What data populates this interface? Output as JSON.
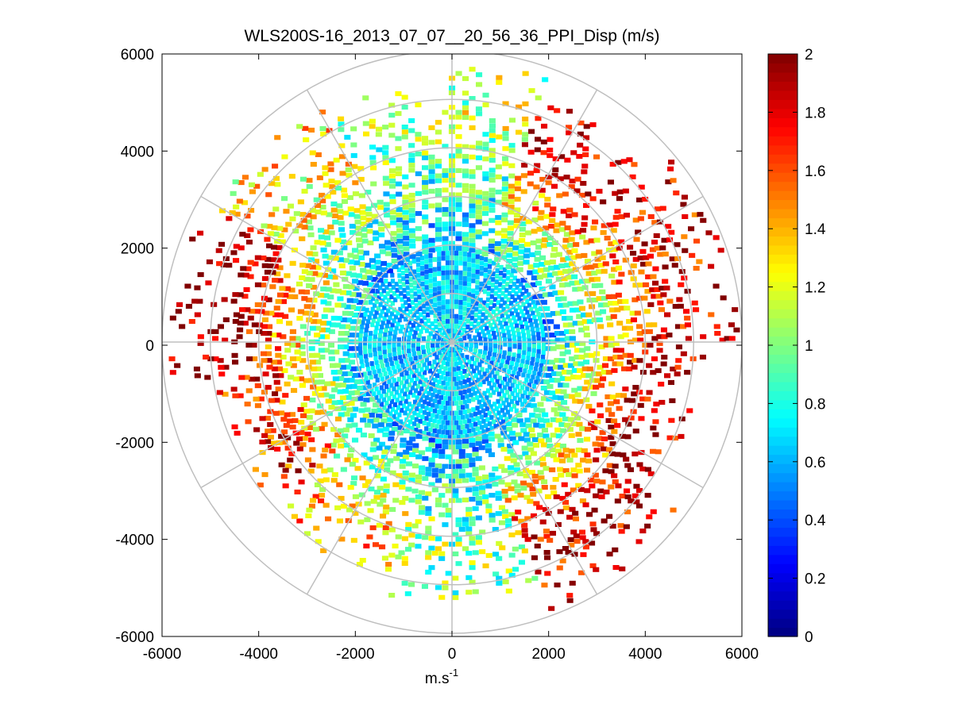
{
  "chart_data": {
    "type": "heatmap",
    "subtype": "polar-ppi",
    "title": "WLS200S-16_2013_07_07__20_56_36_PPI_Disp (m/s)",
    "xlabel": "m.s",
    "xlabel_superscript": "-1",
    "ylabel": "",
    "xlim": [
      -6000,
      6000
    ],
    "ylim": [
      -6000,
      6000
    ],
    "xticks": [
      -6000,
      -4000,
      -2000,
      0,
      2000,
      4000,
      6000
    ],
    "yticks": [
      -6000,
      -4000,
      -2000,
      0,
      2000,
      4000,
      6000
    ],
    "xtick_labels": [
      "-6000",
      "-4000",
      "-2000",
      "0",
      "2000",
      "4000",
      "6000"
    ],
    "ytick_labels": [
      "-6000",
      "-4000",
      "-2000",
      "0",
      "2000",
      "4000",
      "6000"
    ],
    "polar_grid_radii": [
      1000,
      2000,
      3000,
      4000,
      5000,
      6000
    ],
    "polar_grid_spokes_deg": [
      0,
      30,
      60,
      90,
      120,
      150,
      180,
      210,
      240,
      270,
      300,
      330
    ],
    "grid": true,
    "colorbar": {
      "colormap": "jet",
      "clim": [
        0,
        2
      ],
      "ticks": [
        0,
        0.2,
        0.4,
        0.6,
        0.8,
        1,
        1.2,
        1.4,
        1.6,
        1.8,
        2
      ],
      "tick_labels": [
        "0",
        "0.2",
        "0.4",
        "0.6",
        "0.8",
        "1",
        "1.2",
        "1.4",
        "1.6",
        "1.8",
        "2"
      ],
      "location": "right"
    },
    "field_description": {
      "range_gate_spacing_m": 100,
      "max_range_m": 6000,
      "inner_core_radius_m": 2000,
      "inner_core_typical_value": 0.65,
      "outer_ring_typical_value": 1.6,
      "coverage_sectors": [
        {
          "az_deg": 10,
          "max_range_m": 5800,
          "value": 1.1
        },
        {
          "az_deg": 30,
          "max_range_m": 5400,
          "value": 1.9
        },
        {
          "az_deg": 70,
          "max_range_m": 5900,
          "value": 1.8
        },
        {
          "az_deg": 110,
          "max_range_m": 5200,
          "value": 1.9
        },
        {
          "az_deg": 140,
          "max_range_m": 5800,
          "value": 1.85
        },
        {
          "az_deg": 180,
          "max_range_m": 5300,
          "value": 1.0
        },
        {
          "az_deg": 210,
          "max_range_m": 5000,
          "value": 1.4
        },
        {
          "az_deg": 245,
          "max_range_m": 4900,
          "value": 1.7
        },
        {
          "az_deg": 280,
          "max_range_m": 5800,
          "value": 1.95
        },
        {
          "az_deg": 320,
          "max_range_m": 5600,
          "value": 1.3
        },
        {
          "az_deg": 345,
          "max_range_m": 5400,
          "value": 1.0
        }
      ]
    }
  },
  "colors": {
    "background": "#ffffff",
    "axis": "#000000",
    "polar_grid": "#bfbfbf"
  }
}
